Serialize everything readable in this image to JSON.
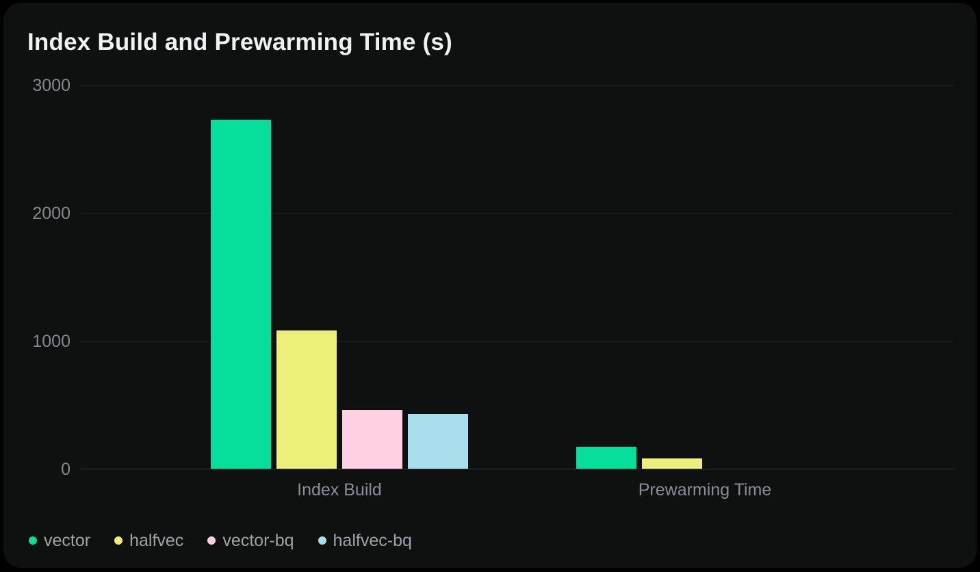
{
  "title": "Index Build and Prewarming Time (s)",
  "colors": {
    "page_background": "#000000",
    "card_background": "#0f1010",
    "title_text": "#f0f1f2",
    "tick_text": "#85888e",
    "category_text": "#8a8d94",
    "legend_text": "#9ea3aa",
    "gridline": "#242629",
    "baseline": "#35383c"
  },
  "chart_data": {
    "type": "bar",
    "title": "Index Build and Prewarming Time (s)",
    "categories": [
      "Index Build",
      "Prewarming Time"
    ],
    "series": [
      {
        "name": "vector",
        "color": "#06df9b",
        "values": [
          2730,
          170
        ]
      },
      {
        "name": "halfvec",
        "color": "#edf078",
        "values": [
          1080,
          80
        ]
      },
      {
        "name": "vector-bq",
        "color": "#ffd0e3",
        "values": [
          460,
          0
        ]
      },
      {
        "name": "halfvec-bq",
        "color": "#a9dfec",
        "values": [
          430,
          0
        ]
      }
    ],
    "ylim": [
      0,
      3000
    ],
    "yticks": [
      0,
      1000,
      2000,
      3000
    ],
    "xlabel": "",
    "ylabel": "",
    "grid": true,
    "legend_position": "bottom-left"
  }
}
